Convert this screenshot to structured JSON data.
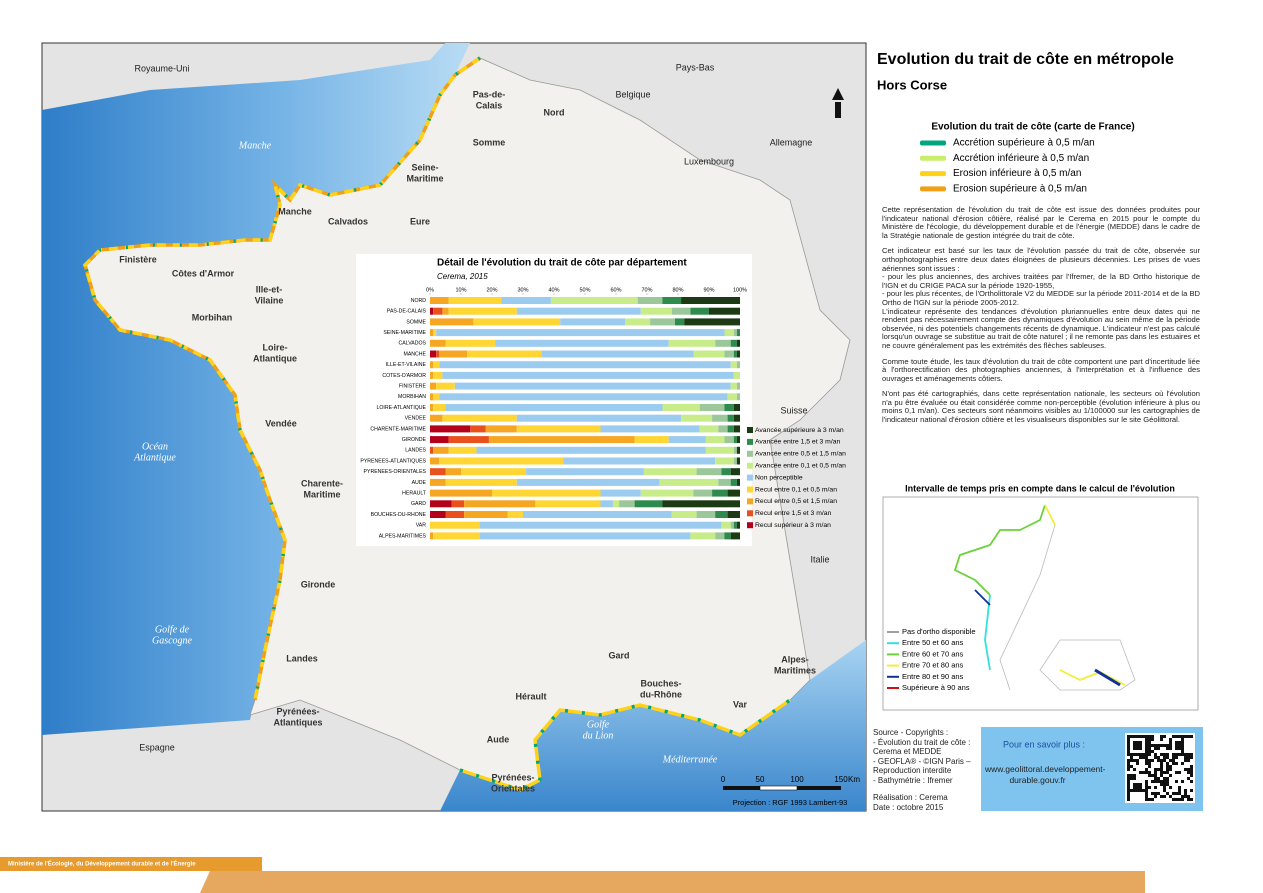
{
  "header": {
    "title": "Evolution du trait de côte en métropole",
    "subtitle": "Hors Corse"
  },
  "map": {
    "countries": [
      [
        "Royaume-Uni"
      ],
      [
        "Pays-Bas"
      ],
      [
        "Belgique"
      ],
      [
        "Allemagne"
      ],
      [
        "Luxembourg"
      ],
      [
        "Suisse"
      ],
      [
        "Italie"
      ],
      [
        "Espagne"
      ]
    ],
    "seas": [
      [
        "Manche"
      ],
      [
        "Océan",
        "Atlantique"
      ],
      [
        "Golfe de",
        "Gascogne"
      ],
      [
        "Golfe",
        "du Lion"
      ],
      [
        "Méditerranée"
      ]
    ],
    "departments": [
      [
        "Pas-de-",
        "Calais"
      ],
      [
        "Nord"
      ],
      [
        "Somme"
      ],
      [
        "Seine-",
        "Maritime"
      ],
      [
        "Calvados"
      ],
      [
        "Eure"
      ],
      [
        "Manche"
      ],
      [
        "Finistère"
      ],
      [
        "Côtes d'Armor"
      ],
      [
        "Ille-et-",
        "Vilaine"
      ],
      [
        "Morbihan"
      ],
      [
        "Loire-",
        "Atlantique"
      ],
      [
        "Vendée"
      ],
      [
        "Charente-",
        "Maritime"
      ],
      [
        "Gironde"
      ],
      [
        "Landes"
      ],
      [
        "Pyrénées-",
        "Atlantiques"
      ],
      [
        "Aude"
      ],
      [
        "Pyrénées-",
        "Orientales"
      ],
      [
        "Hérault"
      ],
      [
        "Gard"
      ],
      [
        "Bouches-",
        "du-Rhône"
      ],
      [
        "Var"
      ],
      [
        "Alpes-",
        "Maritimes"
      ]
    ],
    "scale": [
      "0",
      "50",
      "100",
      "150",
      "Km"
    ],
    "projection": "Projection : RGF 1993 Lambert-93"
  },
  "legend": {
    "title": "Evolution du trait de côte (carte de France)",
    "items": [
      {
        "name": "Accrétion supérieure à 0,5 m/an",
        "color": "#00a77e"
      },
      {
        "name": "Accrétion inférieure à 0,5 m/an",
        "color": "#c8ee6a"
      },
      {
        "name": "Erosion inférieure à 0,5 m/an",
        "color": "#ffd21a"
      },
      {
        "name": "Erosion supérieure à 0,5 m/an",
        "color": "#f0a016"
      }
    ]
  },
  "text": {
    "paragraphs": [
      "Cette représentation de l'évolution du trait de côte est issue des données produites pour l'indicateur national d'érosion côtière, réalisé par le Cerema en 2015 pour le compte du Ministère de l'écologie, du développement durable et de l'énergie (MEDDE) dans le cadre de la Stratégie nationale de gestion intégrée du trait de côte.",
      "Cet indicateur est basé sur les taux de l'évolution passée du trait de côte, observée sur orthophotographies entre deux dates éloignées de plusieurs décennies. Les prises de vues aériennes sont issues :",
      "- pour les plus anciennes, des archives traitées par l'Ifremer, de la BD Ortho historique de l'IGN et du CRIGE PACA sur la période 1920-1955,",
      "- pour les plus récentes, de l'Ortholittorale V2 du MEDDE sur la période 2011-2014 et de la BD Ortho de l'IGN sur la période 2005-2012.",
      "L'indicateur représente des tendances d'évolution pluriannuelles entre deux dates qui ne rendent pas nécessairement compte des dynamiques d'évolution au sein même de la période observée, ni des potentiels changements récents de dynamique. L'indicateur n'est pas calculé lorsqu'un ouvrage se substitue au trait de côte naturel ; il ne remonte pas dans les estuaires et ne couvre généralement pas les extrémités des flèches sableuses.",
      "Comme toute étude, les taux d'évolution du trait de côte comportent une part d'incertitude liée à l'orthorectification des photographies anciennes, à l'interprétation et à l'influence des ouvrages et aménagements côtiers.",
      "N'ont pas été cartographiés, dans cette représentation nationale, les secteurs où l'évolution n'a pu être évaluée ou était considérée comme non-perceptible (évolution inférieure à plus ou moins 0,1 m/an). Ces secteurs sont néanmoins visibles au 1/100000 sur les cartographies de l'indicateur national d'érosion côtière et les visualiseurs disponibles sur le site Géolittoral."
    ]
  },
  "interval": {
    "title": "Intervalle de temps pris en compte dans le calcul de l'évolution",
    "items": [
      {
        "name": "Pas d'ortho disponible",
        "color": "#a0a0a0"
      },
      {
        "name": "Entre 50 et 60 ans",
        "color": "#33e0e0"
      },
      {
        "name": "Entre 60 et 70 ans",
        "color": "#6cd13a"
      },
      {
        "name": "Entre 70 et 80 ans",
        "color": "#f2ee3a"
      },
      {
        "name": "Entre 80 et 90 ans",
        "color": "#10309a"
      },
      {
        "name": "Supérieure à 90 ans",
        "color": "#d01010"
      }
    ]
  },
  "source": [
    "Source - Copyrights :",
    "- Évolution du trait de côte : Cerema et MEDDE",
    "- GEOFLA® - ©IGN Paris – Reproduction interdite",
    "- Bathymétrie : Ifremer",
    "Réalisation : Cerema",
    "Date : octobre 2015"
  ],
  "link": {
    "label": "Pour en savoir plus :",
    "url": "www.geolittoral.developpement-durable.gouv.fr"
  },
  "footer": "Ministère de l'Écologie, du Développement durable et de l'Énergie",
  "chart_data": {
    "type": "stacked_bar_horizontal",
    "title": "Détail de l'évolution du trait de côte par département",
    "subtitle": "Cerema, 2015",
    "categories": [
      "NORD",
      "PAS-DE-CALAIS",
      "SOMME",
      "SEINE-MARITIME",
      "CALVADOS",
      "MANCHE",
      "ILLE-ET-VILAINE",
      "COTES-D'ARMOR",
      "FINISTERE",
      "MORBIHAN",
      "LOIRE-ATLANTIQUE",
      "VENDEE",
      "CHARENTE-MARITIME",
      "GIRONDE",
      "LANDES",
      "PYRENEES-ATLANTIQUES",
      "PYRENEES-ORIENTALES",
      "AUDE",
      "HERAULT",
      "GARD",
      "BOUCHES-DU-RHONE",
      "VAR",
      "ALPES-MARITIMES"
    ],
    "series": [
      {
        "name": "Avancée supérieure à 3 m/an",
        "color": "#1c3a14",
        "values": [
          19,
          10,
          18,
          0,
          1,
          1,
          0,
          0,
          0,
          0,
          2,
          2,
          2,
          1,
          1,
          1,
          3,
          1,
          4,
          25,
          4,
          1,
          3
        ]
      },
      {
        "name": "Avancée entre 1,5 et 3 m/an",
        "color": "#2f8a4e",
        "values": [
          6,
          6,
          3,
          1,
          2,
          1,
          0,
          0,
          0,
          0,
          3,
          2,
          2,
          1,
          0,
          0,
          3,
          2,
          5,
          9,
          4,
          1,
          2
        ]
      },
      {
        "name": "Avancée entre 0,5 et 1,5 m/an",
        "color": "#9cc79a",
        "values": [
          8,
          6,
          8,
          1,
          5,
          3,
          1,
          0,
          1,
          1,
          8,
          5,
          3,
          3,
          1,
          1,
          8,
          4,
          6,
          5,
          6,
          1,
          3
        ]
      },
      {
        "name": "Avancée entre 0,1 et 0,5 m/an",
        "color": "#c9ec8a",
        "values": [
          28,
          10,
          8,
          3,
          15,
          10,
          2,
          2,
          2,
          3,
          12,
          10,
          6,
          6,
          9,
          6,
          17,
          19,
          17,
          2,
          8,
          3,
          8
        ]
      },
      {
        "name": "Non perceptible",
        "color": "#9ccbf0",
        "values": [
          16,
          40,
          21,
          93,
          56,
          49,
          94,
          94,
          89,
          93,
          70,
          53,
          32,
          12,
          74,
          49,
          38,
          46,
          13,
          4,
          48,
          78,
          68
        ]
      },
      {
        "name": "Recul entre 0,1 et 0,5 m/an",
        "color": "#ffd633",
        "values": [
          17,
          22,
          28,
          1,
          16,
          24,
          2,
          3,
          6,
          2,
          4,
          24,
          27,
          11,
          9,
          40,
          21,
          23,
          35,
          21,
          5,
          16,
          15
        ]
      },
      {
        "name": "Recul entre 0,5 et 1,5 m/an",
        "color": "#f5a623",
        "values": [
          6,
          2,
          14,
          1,
          5,
          9,
          1,
          1,
          2,
          1,
          1,
          4,
          10,
          47,
          5,
          3,
          5,
          5,
          20,
          23,
          14,
          0,
          1
        ]
      },
      {
        "name": "Recul entre 1,5 et 3 m/an",
        "color": "#e8501e",
        "values": [
          0,
          3,
          0,
          0,
          0,
          1,
          0,
          0,
          0,
          0,
          0,
          0,
          5,
          13,
          1,
          0,
          5,
          0,
          0,
          4,
          6,
          0,
          0
        ]
      },
      {
        "name": "Recul supérieur à 3 m/an",
        "color": "#b3001b",
        "values": [
          0,
          1,
          0,
          0,
          0,
          2,
          0,
          0,
          0,
          0,
          0,
          0,
          13,
          6,
          0,
          0,
          0,
          0,
          0,
          7,
          5,
          0,
          0
        ]
      }
    ],
    "xlim": [
      0,
      100
    ],
    "xticks": [
      {
        "value": 0,
        "label": "0%"
      },
      {
        "value": 10,
        "label": "10%"
      },
      {
        "value": 20,
        "label": "20%"
      },
      {
        "value": 30,
        "label": "30%"
      },
      {
        "value": 40,
        "label": "40%"
      },
      {
        "value": 50,
        "label": "50%"
      },
      {
        "value": 60,
        "label": "60%"
      },
      {
        "value": 70,
        "label": "70%"
      },
      {
        "value": 80,
        "label": "80%"
      },
      {
        "value": 90,
        "label": "90%"
      },
      {
        "value": 100,
        "label": "100%"
      }
    ]
  }
}
